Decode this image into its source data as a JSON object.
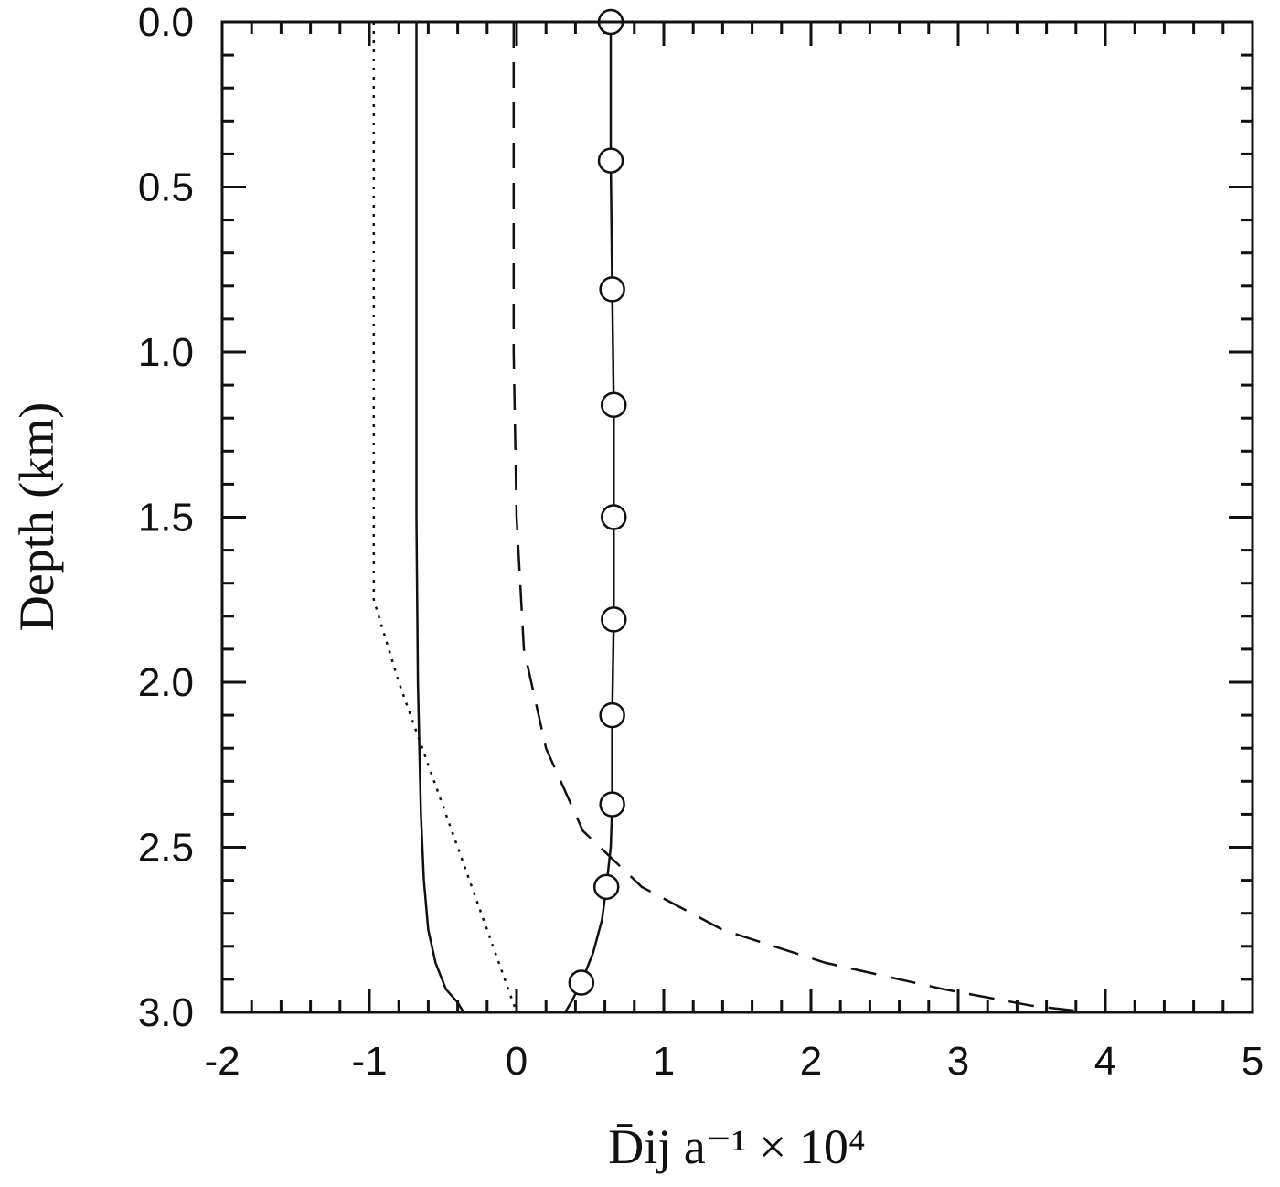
{
  "chart_data": {
    "type": "line",
    "xlabel": "D̄ij a⁻¹ × 10⁴",
    "ylabel": "Depth (km)",
    "xlim": [
      -2,
      5
    ],
    "ylim": [
      3.0,
      0.0
    ],
    "y_inverted": true,
    "x_ticks": [
      {
        "value": -2,
        "label": "-2"
      },
      {
        "value": -1,
        "label": "-1"
      },
      {
        "value": 0,
        "label": "0"
      },
      {
        "value": 1,
        "label": "1"
      },
      {
        "value": 2,
        "label": "2"
      },
      {
        "value": 3,
        "label": "3"
      },
      {
        "value": 4,
        "label": "4"
      },
      {
        "value": 5,
        "label": "5"
      }
    ],
    "y_ticks": [
      {
        "value": 0.0,
        "label": "0.0"
      },
      {
        "value": 0.5,
        "label": "0.5"
      },
      {
        "value": 1.0,
        "label": "1.0"
      },
      {
        "value": 1.5,
        "label": "1.5"
      },
      {
        "value": 2.0,
        "label": "2.0"
      },
      {
        "value": 2.5,
        "label": "2.5"
      },
      {
        "value": 3.0,
        "label": "3.0"
      }
    ],
    "grid": false,
    "series": [
      {
        "style": "solid-with-circles",
        "x": [
          0.64,
          0.64,
          0.65,
          0.66,
          0.66,
          0.66,
          0.65,
          0.65,
          0.64,
          0.61,
          0.58,
          0.52,
          0.44,
          0.37,
          0.33
        ],
        "y": [
          0.0,
          0.42,
          0.81,
          1.16,
          1.5,
          1.81,
          2.1,
          2.37,
          2.5,
          2.62,
          2.72,
          2.82,
          2.91,
          2.97,
          3.0
        ],
        "markers_y": [
          0.0,
          0.42,
          0.81,
          1.16,
          1.5,
          1.81,
          2.1,
          2.37,
          2.62,
          2.91
        ],
        "markers_x": [
          0.64,
          0.64,
          0.65,
          0.66,
          0.66,
          0.66,
          0.65,
          0.65,
          0.61,
          0.44
        ]
      },
      {
        "style": "dashed",
        "x": [
          -0.02,
          -0.02,
          -0.02,
          0.0,
          0.05,
          0.2,
          0.45,
          0.85,
          1.4,
          2.1,
          2.9,
          3.5,
          3.9
        ],
        "y": [
          0.0,
          0.5,
          1.0,
          1.5,
          1.9,
          2.2,
          2.45,
          2.62,
          2.75,
          2.85,
          2.93,
          2.98,
          3.0
        ]
      },
      {
        "style": "dotted",
        "x": [
          -0.97,
          -0.97,
          -0.97,
          -0.97,
          -0.8,
          -0.6,
          -0.4,
          -0.2,
          0.0
        ],
        "y": [
          0.0,
          0.5,
          1.0,
          1.75,
          2.0,
          2.25,
          2.5,
          2.75,
          3.0
        ]
      },
      {
        "style": "solid",
        "x": [
          -0.68,
          -0.68,
          -0.68,
          -0.68,
          -0.67,
          -0.66,
          -0.65,
          -0.63,
          -0.6,
          -0.55,
          -0.48,
          -0.4,
          -0.36
        ],
        "y": [
          0.0,
          0.5,
          1.0,
          1.5,
          2.0,
          2.2,
          2.4,
          2.6,
          2.75,
          2.85,
          2.93,
          2.97,
          3.0
        ]
      }
    ]
  }
}
